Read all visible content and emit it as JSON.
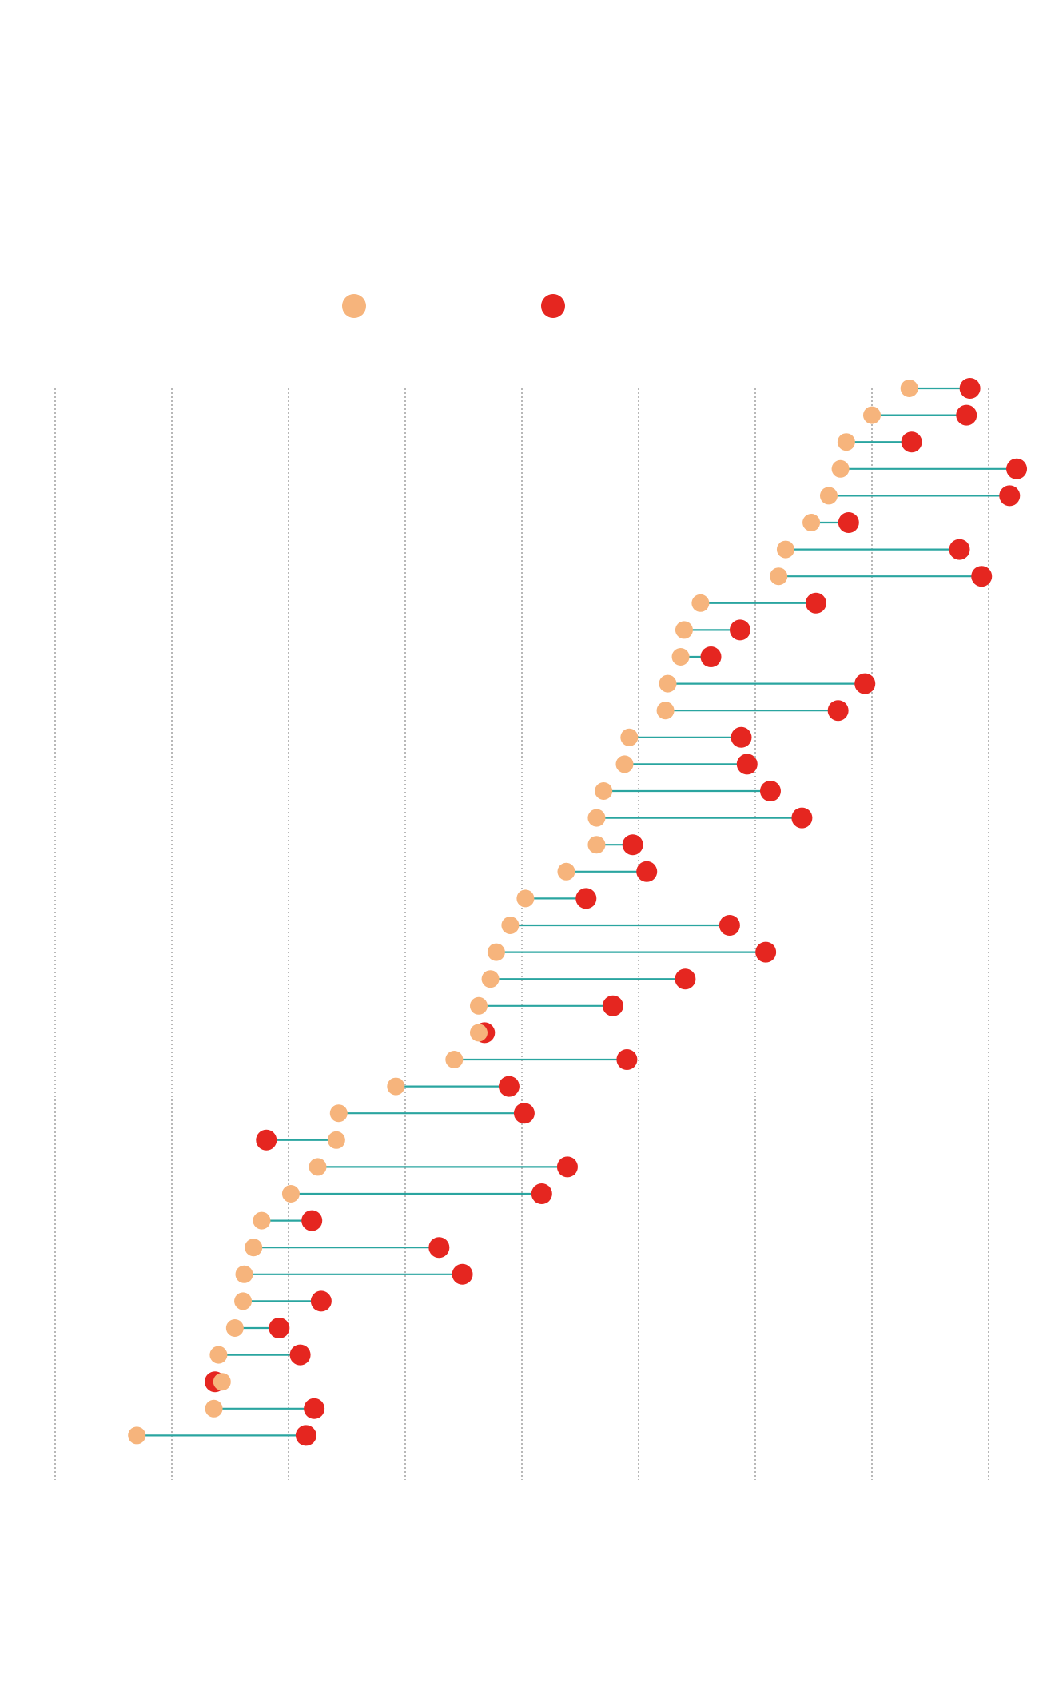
{
  "chart_data": {
    "type": "dumbbell",
    "title": "",
    "xlabel": "",
    "ylabel": "",
    "grid": true,
    "legend_placement": "top-center",
    "xlim": [
      0,
      8.5
    ],
    "gridlines": [
      0,
      1,
      2,
      3,
      4,
      5,
      6,
      7,
      8
    ],
    "colors": {
      "start": "#f6b47c",
      "end": "#e52620",
      "connector": "#2aa5a0",
      "grid": "#9a9a9a"
    },
    "series": [
      {
        "name": "",
        "key": "start",
        "color": "#f6b47c"
      },
      {
        "name": "",
        "key": "end",
        "color": "#e52620"
      }
    ],
    "rows": [
      {
        "start": 7.32,
        "end": 7.84
      },
      {
        "start": 7.0,
        "end": 7.81
      },
      {
        "start": 6.78,
        "end": 7.34
      },
      {
        "start": 6.73,
        "end": 8.24
      },
      {
        "start": 6.63,
        "end": 8.18
      },
      {
        "start": 6.48,
        "end": 6.8
      },
      {
        "start": 6.26,
        "end": 7.75
      },
      {
        "start": 6.2,
        "end": 7.94
      },
      {
        "start": 5.53,
        "end": 6.52
      },
      {
        "start": 5.39,
        "end": 5.87
      },
      {
        "start": 5.36,
        "end": 5.62
      },
      {
        "start": 5.25,
        "end": 6.94
      },
      {
        "start": 5.23,
        "end": 6.71
      },
      {
        "start": 4.92,
        "end": 5.88
      },
      {
        "start": 4.88,
        "end": 5.93
      },
      {
        "start": 4.7,
        "end": 6.13
      },
      {
        "start": 4.64,
        "end": 6.4
      },
      {
        "start": 4.64,
        "end": 4.95
      },
      {
        "start": 4.38,
        "end": 5.07
      },
      {
        "start": 4.03,
        "end": 4.55
      },
      {
        "start": 3.9,
        "end": 5.78
      },
      {
        "start": 3.78,
        "end": 6.09
      },
      {
        "start": 3.73,
        "end": 5.4
      },
      {
        "start": 3.63,
        "end": 4.78
      },
      {
        "start": 3.63,
        "end": 3.68
      },
      {
        "start": 3.42,
        "end": 4.9
      },
      {
        "start": 2.92,
        "end": 3.89
      },
      {
        "start": 2.43,
        "end": 4.02
      },
      {
        "start": 2.41,
        "end": 1.81
      },
      {
        "start": 2.25,
        "end": 4.39
      },
      {
        "start": 2.02,
        "end": 4.17
      },
      {
        "start": 1.77,
        "end": 2.2
      },
      {
        "start": 1.7,
        "end": 3.29
      },
      {
        "start": 1.62,
        "end": 3.49
      },
      {
        "start": 1.61,
        "end": 2.28
      },
      {
        "start": 1.54,
        "end": 1.92
      },
      {
        "start": 1.4,
        "end": 2.1
      },
      {
        "start": 1.43,
        "end": 1.37
      },
      {
        "start": 1.36,
        "end": 2.22
      },
      {
        "start": 0.7,
        "end": 2.15
      }
    ]
  }
}
